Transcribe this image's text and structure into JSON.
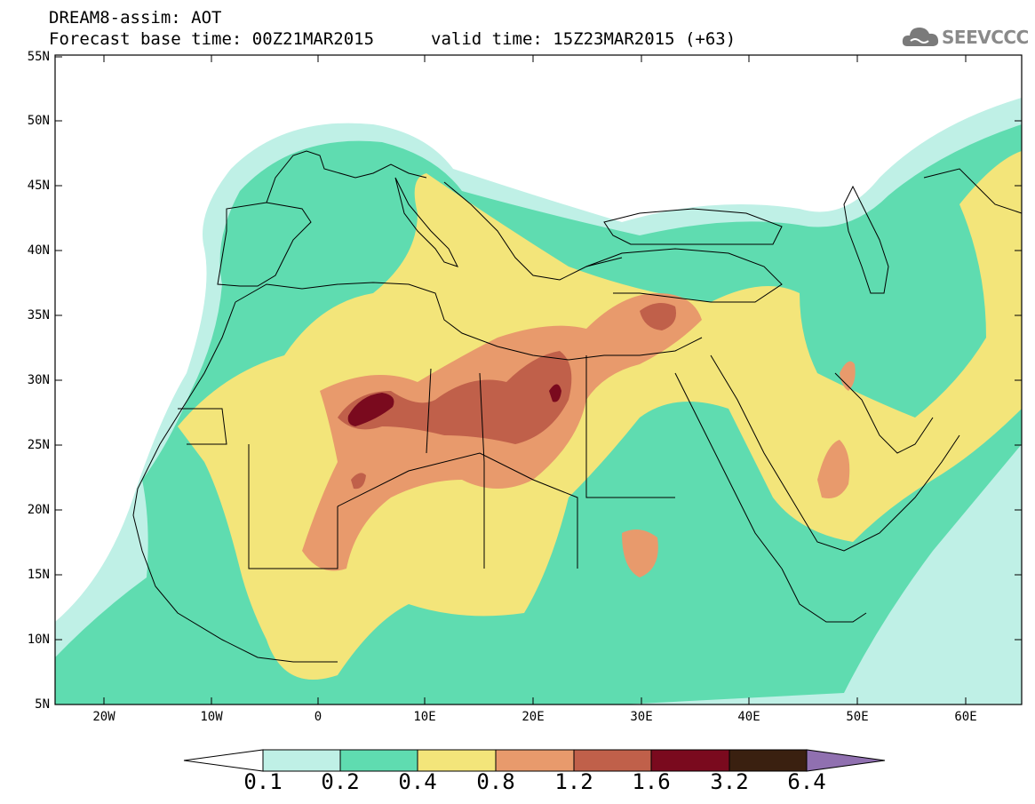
{
  "header": {
    "title": "DREAM8-assim: AOT",
    "base_time": "Forecast base time: 00Z21MAR2015",
    "valid_time": "valid time: 15Z23MAR2015 (+63)"
  },
  "logo": {
    "text": "SEEVCCC",
    "icon": "cloud-icon"
  },
  "axes": {
    "lat_labels": [
      "55N",
      "50N",
      "45N",
      "40N",
      "35N",
      "30N",
      "25N",
      "20N",
      "15N",
      "10N",
      "5N"
    ],
    "lon_labels": [
      "20W",
      "10W",
      "0",
      "10E",
      "20E",
      "30E",
      "40E",
      "50E",
      "60E"
    ]
  },
  "colorbar": {
    "labels": [
      "0.1",
      "0.2",
      "0.4",
      "0.8",
      "1.2",
      "1.6",
      "3.2",
      "6.4"
    ],
    "colors": [
      "#ffffff",
      "#bff0e6",
      "#5fdcb0",
      "#f3e57a",
      "#e89a6c",
      "#c0604a",
      "#7a0a1e",
      "#3a2010",
      "#9070b0"
    ]
  }
}
